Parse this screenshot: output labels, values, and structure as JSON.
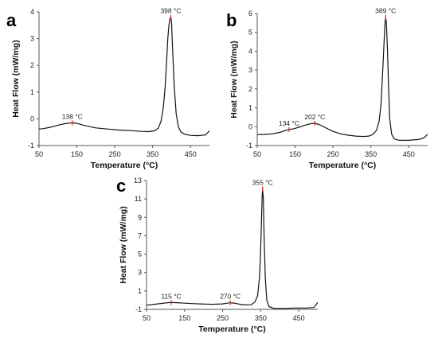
{
  "chart_data": [
    {
      "panel": "a",
      "type": "line",
      "xlabel": "Temperature (°C)",
      "ylabel": "Heat Flow (mW/mg)",
      "xlim": [
        50,
        500
      ],
      "ylim": [
        -1,
        4
      ],
      "xticks": [
        50,
        150,
        250,
        350,
        450
      ],
      "yticks": [
        -1,
        0,
        1,
        2,
        3,
        4
      ],
      "series": [
        {
          "x": [
            50,
            60,
            75,
            90,
            105,
            120,
            130,
            138,
            150,
            170,
            200,
            230,
            260,
            290,
            320,
            340,
            355,
            365,
            372,
            378,
            383,
            387,
            390,
            393,
            396,
            398,
            400,
            403,
            407,
            412,
            418,
            425,
            435,
            450,
            470,
            490,
            500
          ],
          "y": [
            -0.38,
            -0.37,
            -0.33,
            -0.28,
            -0.22,
            -0.18,
            -0.16,
            -0.15,
            -0.17,
            -0.25,
            -0.34,
            -0.38,
            -0.42,
            -0.44,
            -0.47,
            -0.48,
            -0.45,
            -0.35,
            -0.1,
            0.4,
            1.2,
            2.2,
            3.0,
            3.5,
            3.75,
            3.8,
            3.6,
            2.5,
            1.2,
            0.2,
            -0.3,
            -0.5,
            -0.58,
            -0.62,
            -0.63,
            -0.6,
            -0.45
          ]
        }
      ],
      "annotations": [
        {
          "x": 138,
          "y": -0.15,
          "label": "138 °C"
        },
        {
          "x": 398,
          "y": 3.8,
          "label": "398 °C"
        }
      ]
    },
    {
      "panel": "b",
      "type": "line",
      "xlabel": "Temperature (°C)",
      "ylabel": "Heat Flow (mW/mg)",
      "xlim": [
        50,
        500
      ],
      "ylim": [
        -1,
        6
      ],
      "xticks": [
        50,
        150,
        250,
        350,
        450
      ],
      "yticks": [
        -1,
        0,
        1,
        2,
        3,
        4,
        5,
        6
      ],
      "series": [
        {
          "x": [
            50,
            70,
            90,
            110,
            125,
            134,
            145,
            160,
            175,
            190,
            202,
            215,
            230,
            250,
            270,
            290,
            310,
            330,
            345,
            355,
            365,
            372,
            377,
            381,
            385,
            387,
            389,
            391,
            394,
            397,
            400,
            405,
            412,
            425,
            450,
            475,
            490,
            500
          ],
          "y": [
            -0.42,
            -0.41,
            -0.38,
            -0.3,
            -0.2,
            -0.15,
            -0.12,
            -0.03,
            0.07,
            0.15,
            0.18,
            0.1,
            -0.05,
            -0.25,
            -0.38,
            -0.45,
            -0.5,
            -0.52,
            -0.5,
            -0.42,
            -0.2,
            0.3,
            1.2,
            2.8,
            4.5,
            5.4,
            5.8,
            5.5,
            4.0,
            2.0,
            0.4,
            -0.4,
            -0.65,
            -0.72,
            -0.72,
            -0.68,
            -0.6,
            -0.4
          ]
        }
      ],
      "annotations": [
        {
          "x": 134,
          "y": -0.15,
          "label": "134 °C"
        },
        {
          "x": 202,
          "y": 0.18,
          "label": "202 °C"
        },
        {
          "x": 389,
          "y": 5.8,
          "label": "389 °C"
        }
      ]
    },
    {
      "panel": "c",
      "type": "line",
      "xlabel": "Temperature (°C)",
      "ylabel": "Heat Flow (mW/mg)",
      "xlim": [
        50,
        500
      ],
      "ylim": [
        -1,
        13
      ],
      "xticks": [
        50,
        150,
        250,
        350,
        450
      ],
      "yticks": [
        -1,
        1,
        3,
        5,
        7,
        9,
        11,
        13
      ],
      "series": [
        {
          "x": [
            50,
            70,
            90,
            105,
            115,
            130,
            150,
            175,
            200,
            225,
            250,
            262,
            270,
            280,
            295,
            310,
            325,
            335,
            342,
            347,
            350,
            352,
            354,
            355,
            357,
            359,
            362,
            366,
            372,
            385,
            410,
            440,
            470,
            490,
            500
          ],
          "y": [
            -0.55,
            -0.45,
            -0.35,
            -0.28,
            -0.25,
            -0.27,
            -0.33,
            -0.38,
            -0.42,
            -0.45,
            -0.4,
            -0.33,
            -0.28,
            -0.32,
            -0.45,
            -0.52,
            -0.5,
            -0.2,
            0.5,
            2.5,
            5.5,
            8.5,
            11.3,
            12.1,
            11.0,
            7.0,
            2.5,
            0.0,
            -0.7,
            -0.9,
            -0.9,
            -0.85,
            -0.85,
            -0.8,
            -0.25
          ]
        }
      ],
      "annotations": [
        {
          "x": 115,
          "y": -0.25,
          "label": "115 °C"
        },
        {
          "x": 270,
          "y": -0.28,
          "label": "270 °C"
        },
        {
          "x": 355,
          "y": 12.1,
          "label": "355 °C"
        }
      ]
    }
  ]
}
